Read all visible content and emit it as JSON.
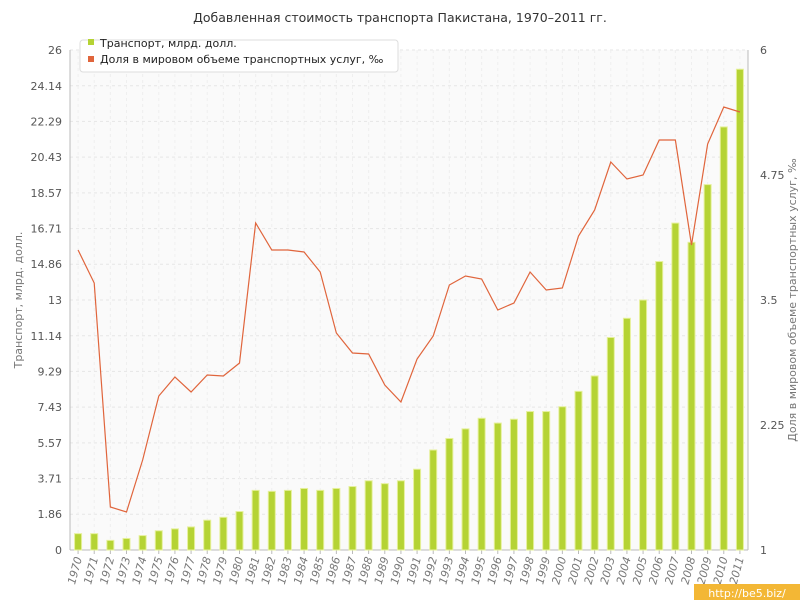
{
  "chart_data": {
    "type": "bar+line",
    "title": "Добавленная стоимость транспорта Пакистана, 1970–2011 гг.",
    "categories": [
      "1970",
      "1971",
      "1972",
      "1973",
      "1974",
      "1975",
      "1976",
      "1977",
      "1978",
      "1979",
      "1980",
      "1981",
      "1982",
      "1983",
      "1984",
      "1985",
      "1986",
      "1987",
      "1988",
      "1989",
      "1990",
      "1991",
      "1992",
      "1993",
      "1994",
      "1995",
      "1996",
      "1997",
      "1998",
      "1999",
      "2000",
      "2001",
      "2002",
      "2003",
      "2004",
      "2005",
      "2006",
      "2007",
      "2008",
      "2009",
      "2010",
      "2011"
    ],
    "series": [
      {
        "name": "Транспорт, млрд. долл.",
        "type": "bar",
        "axis": "left",
        "color": "#b5d334",
        "values": [
          0.85,
          0.85,
          0.5,
          0.6,
          0.75,
          1.0,
          1.1,
          1.2,
          1.55,
          1.7,
          2.0,
          3.1,
          3.05,
          3.1,
          3.2,
          3.1,
          3.2,
          3.3,
          3.6,
          3.45,
          3.6,
          4.2,
          5.2,
          5.8,
          6.3,
          6.85,
          6.6,
          6.8,
          7.2,
          7.2,
          7.45,
          8.25,
          9.05,
          11.05,
          12.05,
          13.0,
          15.0,
          17.0,
          16.0,
          19.0,
          22.0,
          25.0
        ]
      },
      {
        "name": "Доля в мировом объеме транспортных услуг, ‰",
        "type": "line",
        "axis": "right",
        "color": "#e0653c",
        "values": [
          4.0,
          3.67,
          1.43,
          1.38,
          1.9,
          2.54,
          2.73,
          2.58,
          2.75,
          2.74,
          2.87,
          4.27,
          4.0,
          4.0,
          3.98,
          3.78,
          3.17,
          2.97,
          2.96,
          2.65,
          2.48,
          2.91,
          3.14,
          3.65,
          3.74,
          3.71,
          3.4,
          3.47,
          3.78,
          3.6,
          3.62,
          4.14,
          4.4,
          4.88,
          4.71,
          4.75,
          5.1,
          5.1,
          4.05,
          5.06,
          5.43,
          5.38
        ]
      }
    ],
    "y_left": {
      "label": "Транспорт, млрд. долл.",
      "min": 0,
      "max": 26,
      "ticks": [
        "0",
        "1.86",
        "3.71",
        "5.57",
        "7.43",
        "9.29",
        "11.14",
        "13",
        "14.86",
        "16.71",
        "18.57",
        "20.43",
        "22.29",
        "24.14",
        "26"
      ]
    },
    "y_right": {
      "label": "Доля в мировом объеме транспортных услуг, ‰",
      "min": 1,
      "max": 6,
      "ticks": [
        "1",
        "2.25",
        "3.5",
        "4.75",
        "6"
      ]
    },
    "grid": true,
    "legend": "top-left"
  },
  "watermark": "http://be5.biz/",
  "colors": {
    "bar": "#b5d334",
    "bar_edge": "#e6f09a",
    "line": "#e0653c",
    "grid": "#e6e6e6",
    "watermark_bg": "#f3b735"
  }
}
